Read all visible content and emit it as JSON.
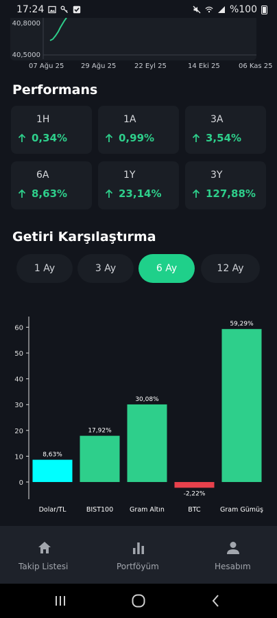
{
  "status_bar": {
    "time": "17:24",
    "battery": "%100",
    "left_icons": [
      "image-icon",
      "key-icon",
      "checkbox-icon"
    ],
    "right_icons": [
      "mute-icon",
      "wifi-icon",
      "signal-icon",
      "battery-icon"
    ]
  },
  "top_chart": {
    "y_labels": [
      "40,8000",
      "40,5000"
    ],
    "x_labels": [
      "07 Ağu 25",
      "29 Ağu 25",
      "22 Eyl 25",
      "14 Eki 25",
      "06 Kas 25"
    ],
    "line_color": "#2ecf8b"
  },
  "performance": {
    "title": "Performans",
    "cards": [
      {
        "period": "1H",
        "value": "0,34%"
      },
      {
        "period": "1A",
        "value": "0,99%"
      },
      {
        "period": "3A",
        "value": "3,54%"
      },
      {
        "period": "6A",
        "value": "8,63%"
      },
      {
        "period": "1Y",
        "value": "23,14%"
      },
      {
        "period": "3Y",
        "value": "127,88%"
      }
    ],
    "positive_color": "#2ecf8b"
  },
  "comparison": {
    "title": "Getiri Karşılaştırma",
    "segments": [
      {
        "label": "1 Ay",
        "active": false
      },
      {
        "label": "3 Ay",
        "active": false
      },
      {
        "label": "6 Ay",
        "active": true
      },
      {
        "label": "12 Ay",
        "active": false
      }
    ],
    "accent_color": "#1fd08a"
  },
  "chart_data": {
    "type": "bar",
    "categories": [
      "Dolar/TL",
      "BIST100",
      "Gram Altın",
      "BTC",
      "Gram Gümüş"
    ],
    "values": [
      8.63,
      17.92,
      30.08,
      -2.22,
      59.29
    ],
    "data_labels": [
      "8,63%",
      "17,92%",
      "30,08%",
      "-2,22%",
      "59,29%"
    ],
    "colors": [
      "#00ffff",
      "#2ecf8b",
      "#2ecf8b",
      "#e8414c",
      "#2ecf8b"
    ],
    "ylim": [
      -4,
      62
    ],
    "yticks": [
      0,
      10,
      20,
      30,
      40,
      50,
      60
    ],
    "grid": false
  },
  "bottom_nav": {
    "items": [
      {
        "label": "Takip Listesi",
        "icon": "home-icon"
      },
      {
        "label": "Portföyüm",
        "icon": "bar-chart-icon"
      },
      {
        "label": "Hesabım",
        "icon": "person-icon"
      }
    ]
  },
  "system_nav": {
    "icons": [
      "recents-icon",
      "home-circle-icon",
      "back-icon"
    ]
  }
}
